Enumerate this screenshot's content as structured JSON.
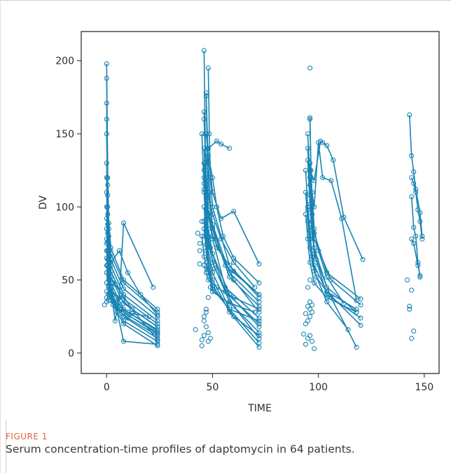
{
  "figure": {
    "label": "FIGURE 1",
    "caption": "Serum concentration-time profiles of daptomycin in 64 patients."
  },
  "chart_data": {
    "type": "line",
    "xlabel": "TIME",
    "ylabel": "DV",
    "xlim": [
      -12,
      157
    ],
    "ylim": [
      -14,
      220
    ],
    "xticks": [
      0,
      50,
      100,
      150
    ],
    "yticks": [
      0,
      50,
      100,
      150,
      200
    ],
    "grid": false,
    "legend": "none",
    "color": "#1a85b4",
    "marker": "open-circle",
    "series": [
      {
        "x": [
          0,
          0.5,
          1,
          2,
          8,
          24
        ],
        "y": [
          198,
          120,
          89,
          72,
          50,
          30
        ]
      },
      {
        "x": [
          0,
          0.5,
          1,
          2,
          8,
          24
        ],
        "y": [
          188,
          115,
          85,
          68,
          48,
          28
        ]
      },
      {
        "x": [
          0,
          0.5,
          1,
          2,
          8,
          24
        ],
        "y": [
          171,
          108,
          80,
          64,
          44,
          25
        ]
      },
      {
        "x": [
          0,
          0.5,
          1,
          2,
          8,
          24
        ],
        "y": [
          160,
          100,
          75,
          60,
          40,
          22
        ]
      },
      {
        "x": [
          0,
          0.5,
          1,
          2,
          8,
          24
        ],
        "y": [
          150,
          95,
          70,
          56,
          37,
          20
        ]
      },
      {
        "x": [
          0,
          0.5,
          1,
          2,
          8,
          24
        ],
        "y": [
          130,
          88,
          66,
          52,
          34,
          18
        ]
      },
      {
        "x": [
          0,
          0.5,
          1,
          2,
          8,
          24
        ],
        "y": [
          120,
          82,
          62,
          48,
          30,
          15
        ]
      },
      {
        "x": [
          0,
          0.5,
          1,
          2,
          8,
          24
        ],
        "y": [
          110,
          76,
          58,
          45,
          28,
          13
        ]
      },
      {
        "x": [
          0,
          0.5,
          1,
          2,
          8,
          24
        ],
        "y": [
          100,
          70,
          54,
          42,
          25,
          10
        ]
      },
      {
        "x": [
          0,
          0.5,
          1,
          2,
          8,
          24
        ],
        "y": [
          92,
          64,
          50,
          40,
          22,
          8
        ]
      },
      {
        "x": [
          0,
          0.5,
          1,
          2,
          8,
          24
        ],
        "y": [
          85,
          60,
          46,
          36,
          20,
          5
        ]
      },
      {
        "x": [
          0,
          1,
          2,
          4,
          10,
          24
        ],
        "y": [
          78,
          56,
          44,
          35,
          28,
          16
        ]
      },
      {
        "x": [
          0,
          1,
          2,
          4,
          10,
          24
        ],
        "y": [
          70,
          52,
          40,
          32,
          26,
          14
        ]
      },
      {
        "x": [
          0,
          1,
          2,
          6,
          12,
          24
        ],
        "y": [
          65,
          50,
          42,
          38,
          30,
          18
        ]
      },
      {
        "x": [
          0,
          1,
          2,
          5,
          10,
          24
        ],
        "y": [
          60,
          46,
          38,
          30,
          24,
          12
        ]
      },
      {
        "x": [
          0,
          1,
          3,
          5,
          8,
          24
        ],
        "y": [
          55,
          45,
          40,
          28,
          8,
          6
        ]
      },
      {
        "x": [
          0,
          2,
          4,
          6,
          8,
          22
        ],
        "y": [
          48,
          44,
          22,
          38,
          89,
          45
        ]
      },
      {
        "x": [
          0,
          1,
          3,
          6,
          12,
          20
        ],
        "y": [
          42,
          40,
          33,
          30,
          27,
          25
        ]
      },
      {
        "x": [
          0,
          1,
          2,
          4,
          12,
          24
        ],
        "y": [
          35,
          45,
          52,
          47,
          30,
          9
        ]
      },
      {
        "x": [
          0,
          2,
          6,
          10,
          16,
          24
        ],
        "y": [
          75,
          62,
          70,
          55,
          40,
          26
        ]
      },
      {
        "x": [
          46,
          46.5,
          47,
          48,
          56,
          72
        ],
        "y": [
          207,
          150,
          115,
          95,
          60,
          40
        ]
      },
      {
        "x": [
          47,
          47.5,
          48,
          50,
          58,
          72
        ],
        "y": [
          178,
          140,
          110,
          88,
          55,
          35
        ]
      },
      {
        "x": [
          47,
          48,
          49,
          50,
          58,
          72
        ],
        "y": [
          176,
          130,
          102,
          85,
          52,
          32
        ]
      },
      {
        "x": [
          48,
          48.5,
          49,
          50,
          58,
          72
        ],
        "y": [
          195,
          150,
          120,
          100,
          60,
          38
        ]
      },
      {
        "x": [
          46,
          47,
          48,
          50,
          60,
          72
        ],
        "y": [
          165,
          125,
          98,
          80,
          50,
          28
        ]
      },
      {
        "x": [
          46,
          47,
          48,
          50,
          56,
          72
        ],
        "y": [
          160,
          120,
          95,
          78,
          45,
          24
        ]
      },
      {
        "x": [
          45,
          46,
          47,
          49,
          56,
          72
        ],
        "y": [
          150,
          112,
          90,
          72,
          42,
          20
        ]
      },
      {
        "x": [
          46,
          47,
          48,
          50,
          58,
          72
        ],
        "y": [
          140,
          105,
          85,
          68,
          40,
          18
        ]
      },
      {
        "x": [
          46,
          47,
          48,
          50,
          58,
          72
        ],
        "y": [
          130,
          98,
          80,
          62,
          35,
          14
        ]
      },
      {
        "x": [
          46,
          47,
          48,
          51,
          60,
          72
        ],
        "y": [
          120,
          92,
          75,
          58,
          32,
          10
        ]
      },
      {
        "x": [
          46,
          47,
          48,
          50,
          58,
          72
        ],
        "y": [
          110,
          86,
          70,
          55,
          30,
          7
        ]
      },
      {
        "x": [
          46,
          47,
          48,
          50,
          58,
          72
        ],
        "y": [
          100,
          80,
          65,
          50,
          28,
          4
        ]
      },
      {
        "x": [
          46,
          47,
          48,
          50,
          60,
          72
        ],
        "y": [
          90,
          74,
          60,
          46,
          25,
          12
        ]
      },
      {
        "x": [
          46,
          47,
          48,
          50,
          58,
          72
        ],
        "y": [
          85,
          70,
          58,
          44,
          30,
          22
        ]
      },
      {
        "x": [
          45,
          46,
          48,
          50,
          58,
          70
        ],
        "y": [
          80,
          66,
          55,
          42,
          34,
          28
        ]
      },
      {
        "x": [
          46,
          48,
          52,
          54,
          58
        ],
        "y": [
          116,
          140,
          145,
          143,
          140
        ]
      },
      {
        "x": [
          47,
          50,
          54,
          60,
          72
        ],
        "y": [
          150,
          110,
          92,
          97,
          61
        ]
      },
      {
        "x": [
          48,
          50,
          52,
          55,
          60,
          72
        ],
        "y": [
          135,
          120,
          100,
          80,
          65,
          48
        ]
      },
      {
        "x": [
          46,
          48,
          50,
          54,
          60,
          70
        ],
        "y": [
          125,
          108,
          95,
          78,
          62,
          45
        ]
      },
      {
        "x": [
          47,
          48,
          50,
          52,
          60,
          72
        ],
        "y": [
          115,
          98,
          86,
          72,
          56,
          40
        ]
      },
      {
        "x": [
          46,
          47,
          48,
          52,
          60,
          72
        ],
        "y": [
          60,
          55,
          50,
          45,
          38,
          30
        ]
      },
      {
        "x": [
          96,
          96.5,
          97,
          98,
          104,
          120
        ],
        "y": [
          161,
          125,
          100,
          82,
          55,
          37
        ]
      },
      {
        "x": [
          96,
          96.5,
          97,
          98,
          106,
          120
        ],
        "y": [
          160,
          120,
          95,
          78,
          50,
          33
        ]
      },
      {
        "x": [
          95,
          96,
          97,
          98,
          104,
          118
        ],
        "y": [
          150,
          115,
          90,
          72,
          45,
          28
        ]
      },
      {
        "x": [
          95,
          96,
          97,
          98,
          104,
          120
        ],
        "y": [
          140,
          108,
          86,
          68,
          40,
          24
        ]
      },
      {
        "x": [
          95,
          96,
          97,
          99,
          106,
          118
        ],
        "y": [
          132,
          102,
          80,
          64,
          38,
          4
        ]
      },
      {
        "x": [
          94,
          95,
          96,
          98,
          104,
          120
        ],
        "y": [
          125,
          98,
          78,
          60,
          42,
          19
        ]
      },
      {
        "x": [
          94,
          95,
          96,
          98,
          104,
          114
        ],
        "y": [
          110,
          90,
          72,
          56,
          35,
          16
        ]
      },
      {
        "x": [
          95,
          96,
          97,
          99,
          104,
          118
        ],
        "y": [
          100,
          84,
          66,
          52,
          42,
          30
        ]
      },
      {
        "x": [
          94,
          95,
          96,
          98,
          104,
          118
        ],
        "y": [
          95,
          78,
          62,
          48,
          38,
          28
        ]
      },
      {
        "x": [
          96,
          98,
          101,
          102,
          104,
          107,
          112,
          121
        ],
        "y": [
          125,
          118,
          145,
          144,
          142,
          132,
          93,
          64
        ]
      },
      {
        "x": [
          96,
          98,
          100,
          102,
          106,
          111,
          118
        ],
        "y": [
          120,
          100,
          144,
          120,
          118,
          92,
          36
        ]
      },
      {
        "x": [
          96,
          97,
          98,
          100,
          104,
          112
        ],
        "y": [
          130,
          110,
          85,
          70,
          52,
          34
        ]
      },
      {
        "x": [
          143,
          144,
          145,
          146,
          148,
          149
        ],
        "y": [
          163,
          135,
          124,
          112,
          96,
          80
        ]
      },
      {
        "x": [
          144,
          145,
          146,
          147,
          148,
          149
        ],
        "y": [
          120,
          116,
          110,
          98,
          90,
          78
        ]
      },
      {
        "x": [
          144,
          145,
          146,
          147,
          148
        ],
        "y": [
          107,
          86,
          80,
          62,
          52
        ]
      },
      {
        "x": [
          144,
          145,
          147,
          148
        ],
        "y": [
          78,
          75,
          60,
          53
        ]
      }
    ],
    "scatter_points": {
      "x": [
        -1,
        0,
        1,
        2,
        3,
        0,
        1,
        2,
        42,
        43,
        44,
        44,
        45,
        46,
        47,
        48,
        49,
        45,
        46,
        47,
        48,
        44,
        46,
        47,
        48,
        45,
        46,
        47,
        49,
        94,
        95,
        96,
        96,
        97,
        98,
        94,
        95,
        96,
        97,
        95,
        96,
        97,
        93,
        94,
        96,
        95,
        96,
        142,
        143,
        144,
        145,
        144,
        143
      ],
      "y": [
        33,
        38,
        36,
        42,
        48,
        55,
        45,
        52,
        16,
        82,
        75,
        61,
        90,
        25,
        30,
        38,
        45,
        9,
        12,
        18,
        8,
        70,
        80,
        62,
        14,
        5,
        22,
        28,
        10,
        6,
        10,
        12,
        25,
        8,
        3,
        27,
        32,
        35,
        33,
        45,
        50,
        28,
        13,
        20,
        195,
        22,
        30,
        50,
        30,
        10,
        15,
        43,
        32
      ]
    }
  }
}
